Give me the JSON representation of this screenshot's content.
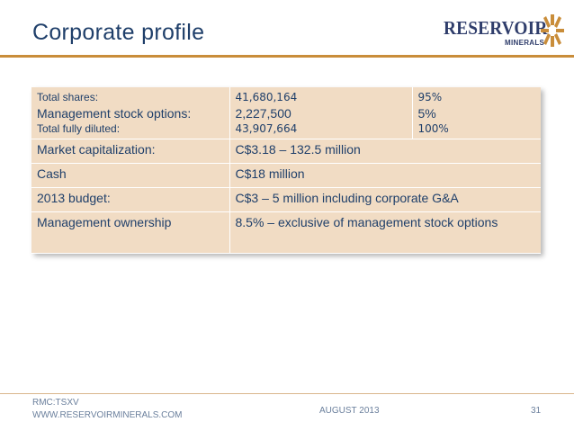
{
  "title": "Corporate profile",
  "logo": {
    "word": "RESERVOIR",
    "sub": "MINERALS",
    "accent": "#c98d3a",
    "navy": "#2f3d6b"
  },
  "colors": {
    "title": "#1f3f6a",
    "cell_bg": "#f1dcc4",
    "rule": "#c98d3a",
    "footer_text": "#6a7f9c"
  },
  "table": {
    "shares": {
      "labels": [
        "Total shares:",
        "Management stock options:",
        "Total fully diluted:"
      ],
      "values": [
        "41,680,164",
        "2,227,500",
        "43,907,664"
      ],
      "percents": [
        "95%",
        "5%",
        "100%"
      ]
    },
    "rows": [
      {
        "label": "Market capitalization:",
        "value": "C$3.18 – 132.5 million"
      },
      {
        "label": "Cash",
        "value": "C$18 million"
      },
      {
        "label": "2013 budget:",
        "value": "C$3 – 5 million including corporate G&A"
      },
      {
        "label": "Management ownership",
        "value": "8.5% – exclusive of management stock options"
      }
    ]
  },
  "footer": {
    "ticker": "RMC:TSXV",
    "website": "WWW.RESERVOIRMINERALS.COM",
    "date": "AUGUST 2013",
    "page": "31"
  }
}
